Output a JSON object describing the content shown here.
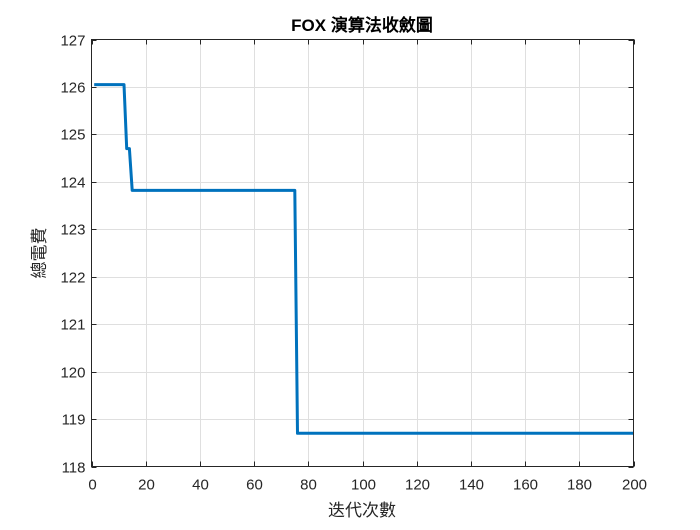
{
  "chart_data": {
    "type": "line",
    "title": "FOX 演算法收斂圖",
    "xlabel": "迭代次數",
    "ylabel": "總電費",
    "xlim": [
      0,
      200
    ],
    "ylim": [
      118,
      127
    ],
    "xticks": [
      0,
      20,
      40,
      60,
      80,
      100,
      120,
      140,
      160,
      180,
      200
    ],
    "yticks": [
      118,
      119,
      120,
      121,
      122,
      123,
      124,
      125,
      126,
      127
    ],
    "grid": true,
    "series": [
      {
        "color": "#0072BD",
        "x": [
          1,
          12,
          13,
          14,
          15,
          75,
          76,
          200
        ],
        "y": [
          126.05,
          126.05,
          124.7,
          124.7,
          123.82,
          123.82,
          118.7,
          118.7
        ]
      }
    ]
  }
}
